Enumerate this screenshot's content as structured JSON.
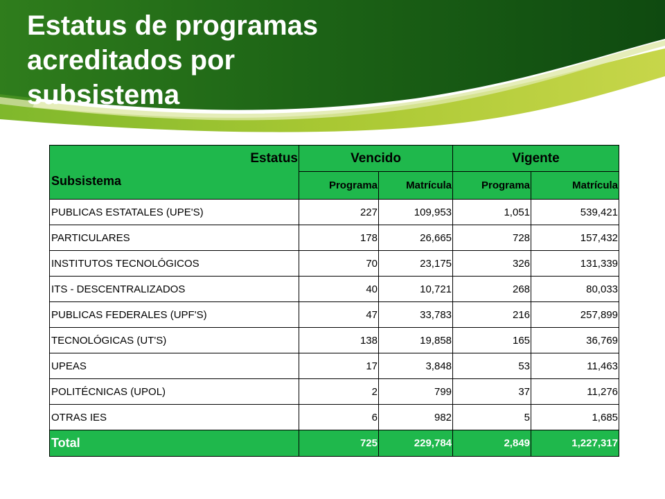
{
  "title_lines": [
    "Estatus de programas",
    "acreditados por",
    "subsistema"
  ],
  "colors": {
    "header_green": "#1fb84c",
    "banner_dark": "#1a5a14",
    "banner_light": "#a9c833"
  },
  "table": {
    "estatus_label": "Estatus",
    "subsistema_label": "Subsistema",
    "groups": [
      "Vencido",
      "Vigente"
    ],
    "subheaders": [
      "Programa",
      "Matrícula",
      "Programa",
      "Matrícula"
    ],
    "rows": [
      {
        "name": "PUBLICAS ESTATALES (UPE'S)",
        "values": [
          "227",
          "109,953",
          "1,051",
          "539,421"
        ]
      },
      {
        "name": "PARTICULARES",
        "values": [
          "178",
          "26,665",
          "728",
          "157,432"
        ]
      },
      {
        "name": "INSTITUTOS TECNOLÓGICOS",
        "values": [
          "70",
          "23,175",
          "326",
          "131,339"
        ]
      },
      {
        "name": "ITS - DESCENTRALIZADOS",
        "values": [
          "40",
          "10,721",
          "268",
          "80,033"
        ]
      },
      {
        "name": "PUBLICAS FEDERALES (UPF'S)",
        "values": [
          "47",
          "33,783",
          "216",
          "257,899"
        ]
      },
      {
        "name": "TECNOLÓGICAS (UT'S)",
        "values": [
          "138",
          "19,858",
          "165",
          "36,769"
        ]
      },
      {
        "name": "UPEAS",
        "values": [
          "17",
          "3,848",
          "53",
          "11,463"
        ]
      },
      {
        "name": "POLITÉCNICAS (UPOL)",
        "values": [
          "2",
          "799",
          "37",
          "11,276"
        ]
      },
      {
        "name": "OTRAS IES",
        "values": [
          "6",
          "982",
          "5",
          "1,685"
        ]
      }
    ],
    "total": {
      "name": "Total",
      "values": [
        "725",
        "229,784",
        "2,849",
        "1,227,317"
      ]
    }
  }
}
